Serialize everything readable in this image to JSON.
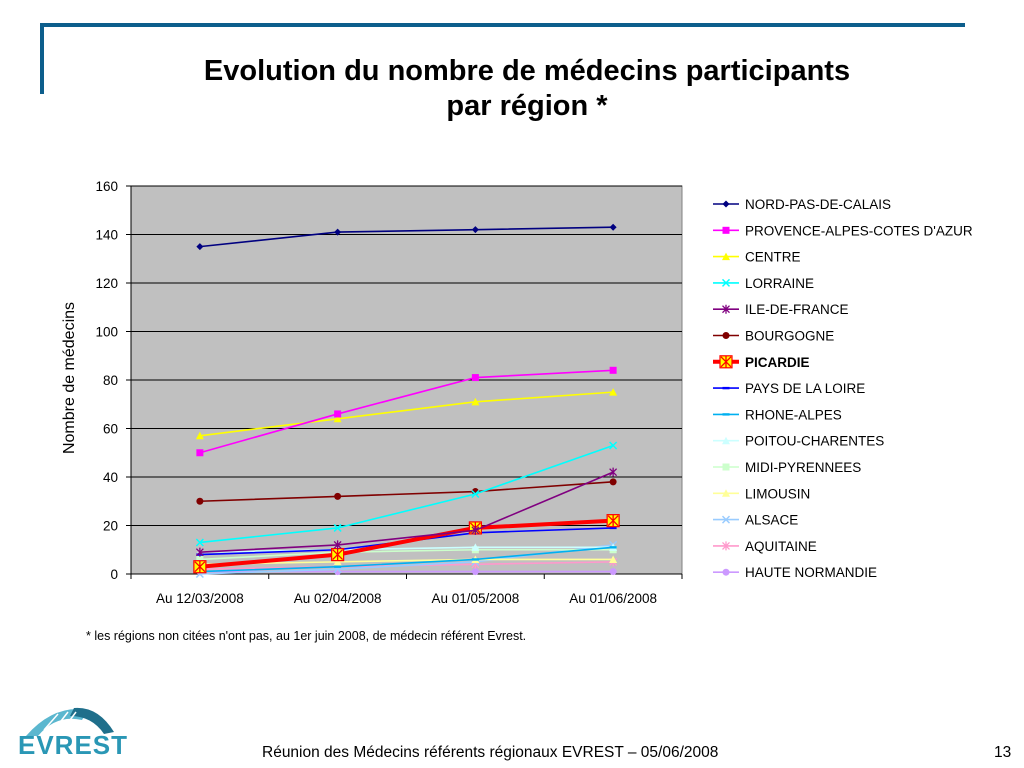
{
  "slide": {
    "title_line1": "Evolution du nombre de médecins participants",
    "title_line2": "par région *",
    "footnote": "* les régions non citées n'ont pas, au 1er juin 2008, de médecin référent Evrest.",
    "footer": "Réunion des Médecins référents régionaux EVREST – 05/06/2008",
    "page_number": "13",
    "logo_text": "EVREST",
    "brand_color": "#0d5e8c"
  },
  "chart_data": {
    "type": "line",
    "title": "",
    "xlabel": "",
    "ylabel": "Nombre de médecins",
    "categories": [
      "Au 12/03/2008",
      "Au 02/04/2008",
      "Au 01/05/2008",
      "Au 01/06/2008"
    ],
    "ylim": [
      0,
      160
    ],
    "yticks": [
      0,
      20,
      40,
      60,
      80,
      100,
      120,
      140,
      160
    ],
    "grid": true,
    "plot_background": "#c0c0c0",
    "legend_position": "right",
    "series": [
      {
        "name": "NORD-PAS-DE-CALAIS",
        "values": [
          135,
          141,
          142,
          143
        ],
        "color": "#000080",
        "marker": "diamond"
      },
      {
        "name": "PROVENCE-ALPES-COTES D'AZUR",
        "values": [
          50,
          66,
          81,
          84
        ],
        "color": "#ff00ff",
        "marker": "square"
      },
      {
        "name": "CENTRE",
        "values": [
          57,
          64,
          71,
          75
        ],
        "color": "#ffff00",
        "marker": "triangle"
      },
      {
        "name": "LORRAINE",
        "values": [
          13,
          19,
          33,
          53
        ],
        "color": "#00ffff",
        "marker": "x"
      },
      {
        "name": "ILE-DE-FRANCE",
        "values": [
          9,
          12,
          18,
          42
        ],
        "color": "#800080",
        "marker": "star"
      },
      {
        "name": "BOURGOGNE",
        "values": [
          30,
          32,
          34,
          38
        ],
        "color": "#800000",
        "marker": "circle"
      },
      {
        "name": "PICARDIE",
        "values": [
          3,
          8,
          19,
          22
        ],
        "color": "#ff0000",
        "marker": "big-star",
        "bold": true
      },
      {
        "name": "PAYS DE LA LOIRE",
        "values": [
          8,
          10,
          17,
          19
        ],
        "color": "#0000ff",
        "marker": "dash"
      },
      {
        "name": "RHONE-ALPES",
        "values": [
          1,
          3,
          6,
          11
        ],
        "color": "#00b0f0",
        "marker": "dash"
      },
      {
        "name": "POITOU-CHARENTES",
        "values": [
          9,
          10,
          11,
          11
        ],
        "color": "#ccffff",
        "marker": "triangle"
      },
      {
        "name": "MIDI-PYRENNEES",
        "values": [
          6,
          9,
          10,
          10
        ],
        "color": "#ccffcc",
        "marker": "square"
      },
      {
        "name": "LIMOUSIN",
        "values": [
          4,
          5,
          6,
          6
        ],
        "color": "#ffff99",
        "marker": "triangle"
      },
      {
        "name": "ALSACE",
        "values": [
          0,
          2,
          5,
          12
        ],
        "color": "#99ccff",
        "marker": "x"
      },
      {
        "name": "AQUITAINE",
        "values": [
          2,
          3,
          4,
          5
        ],
        "color": "#ff99cc",
        "marker": "star"
      },
      {
        "name": "HAUTE NORMANDIE",
        "values": [
          1,
          1,
          1,
          1
        ],
        "color": "#cc99ff",
        "marker": "circle"
      }
    ]
  }
}
